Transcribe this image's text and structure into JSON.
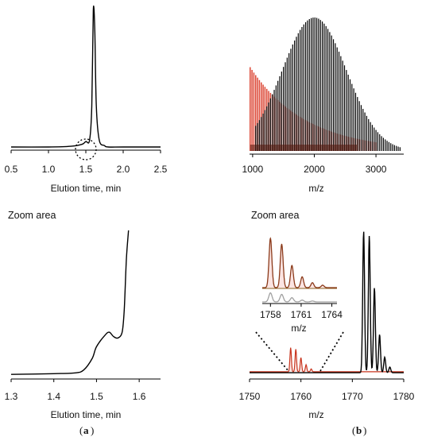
{
  "figure": {
    "panel_a_label": "a",
    "panel_b_label": "b"
  },
  "colors": {
    "trace": "#000000",
    "red_series": "#d9321f",
    "brown_series": "#8b5a1a",
    "gray_series": "#a0a0a0"
  },
  "chart_data": [
    {
      "id": "chromatogram",
      "type": "line",
      "title": "",
      "xlabel": "Elution time, min",
      "ylabel": "",
      "xlim": [
        0.5,
        2.5
      ],
      "xticks": [
        0.5,
        1.0,
        1.5,
        2.0,
        2.5
      ],
      "tick_labels": [
        "0.5",
        "1.0",
        "1.5",
        "2.0",
        "2.5"
      ],
      "annotation": "dotted circle at x≈1.5 marking zoom region",
      "series": [
        {
          "x": [
            0.5,
            1.0,
            1.3,
            1.45,
            1.5,
            1.55,
            1.58,
            1.6,
            1.62,
            1.64,
            1.68,
            1.75,
            1.8,
            2.0,
            2.5
          ],
          "y": [
            0.0,
            0.0,
            0.005,
            0.02,
            0.04,
            0.05,
            0.3,
            1.0,
            0.85,
            0.3,
            0.05,
            0.01,
            0.0,
            0.0,
            0.0
          ]
        }
      ]
    },
    {
      "id": "mass_spectrum_full",
      "type": "bar",
      "title": "",
      "xlabel": "m/z",
      "ylabel": "",
      "xlim": [
        950,
        3450
      ],
      "xticks": [
        1000,
        2000,
        3000
      ],
      "tick_labels": [
        "1000",
        "2000",
        "3000"
      ],
      "series": [
        {
          "name": "",
          "color_key": "trace",
          "envelope": {
            "center": 2000,
            "sigma": 520,
            "amplitude": 1.0,
            "start": 1050,
            "end": 3400,
            "step": 30
          }
        },
        {
          "name": "",
          "color_key": "red_series",
          "envelope": {
            "peak_at": 950,
            "decay": 900,
            "amplitude": 0.62,
            "start": 960,
            "end": 3000,
            "step": 30
          }
        }
      ]
    },
    {
      "id": "chromatogram_zoom",
      "type": "line",
      "title": "",
      "annotation_text": "Zoom area",
      "xlabel": "Elution time, min",
      "ylabel": "",
      "xlim": [
        1.3,
        1.65
      ],
      "xticks": [
        1.3,
        1.4,
        1.5,
        1.6
      ],
      "tick_labels": [
        "1.3",
        "1.4",
        "1.5",
        "1.6"
      ],
      "series": [
        {
          "x": [
            1.3,
            1.35,
            1.4,
            1.45,
            1.47,
            1.49,
            1.5,
            1.52,
            1.53,
            1.54,
            1.55,
            1.56,
            1.565,
            1.57,
            1.575
          ],
          "y": [
            0.01,
            0.012,
            0.015,
            0.02,
            0.04,
            0.12,
            0.2,
            0.28,
            0.3,
            0.27,
            0.26,
            0.3,
            0.45,
            0.8,
            1.0
          ]
        }
      ]
    },
    {
      "id": "mass_spectrum_zoom",
      "type": "line",
      "title": "",
      "annotation_text": "Zoom area",
      "xlabel": "m/z",
      "ylabel": "",
      "xlim": [
        1750,
        1780
      ],
      "xticks": [
        1750,
        1760,
        1770,
        1780
      ],
      "tick_labels": [
        "1750",
        "1760",
        "1770",
        "1780"
      ],
      "series": [
        {
          "name": "",
          "color_key": "trace",
          "peaks": [
            [
              1772.2,
              1.0
            ],
            [
              1773.3,
              0.97
            ],
            [
              1774.3,
              0.6
            ],
            [
              1775.3,
              0.27
            ],
            [
              1776.3,
              0.11
            ],
            [
              1777.3,
              0.04
            ]
          ]
        },
        {
          "name": "",
          "color_key": "red_series",
          "peaks": [
            [
              1758.0,
              0.17
            ],
            [
              1759.0,
              0.16
            ],
            [
              1760.0,
              0.1
            ],
            [
              1761.0,
              0.05
            ],
            [
              1762.0,
              0.02
            ]
          ]
        }
      ],
      "inset": {
        "xlim": [
          1757.2,
          1764.5
        ],
        "xticks": [
          1758,
          1761,
          1764
        ],
        "tick_labels": [
          "1758",
          "1761",
          "1764"
        ],
        "xlabel": "m/z",
        "series": [
          {
            "name": "",
            "color_key": "red_series",
            "peaks": [
              [
                1758.0,
                1.0
              ],
              [
                1759.1,
                0.88
              ],
              [
                1760.1,
                0.45
              ],
              [
                1761.1,
                0.22
              ],
              [
                1762.1,
                0.1
              ],
              [
                1763.1,
                0.05
              ]
            ]
          },
          {
            "name": "",
            "color_key": "gray_series",
            "peaks": [
              [
                1758.0,
                0.3
              ],
              [
                1759.1,
                0.25
              ],
              [
                1760.1,
                0.14
              ],
              [
                1761.1,
                0.06
              ],
              [
                1762.1,
                0.03
              ]
            ]
          }
        ]
      }
    }
  ]
}
